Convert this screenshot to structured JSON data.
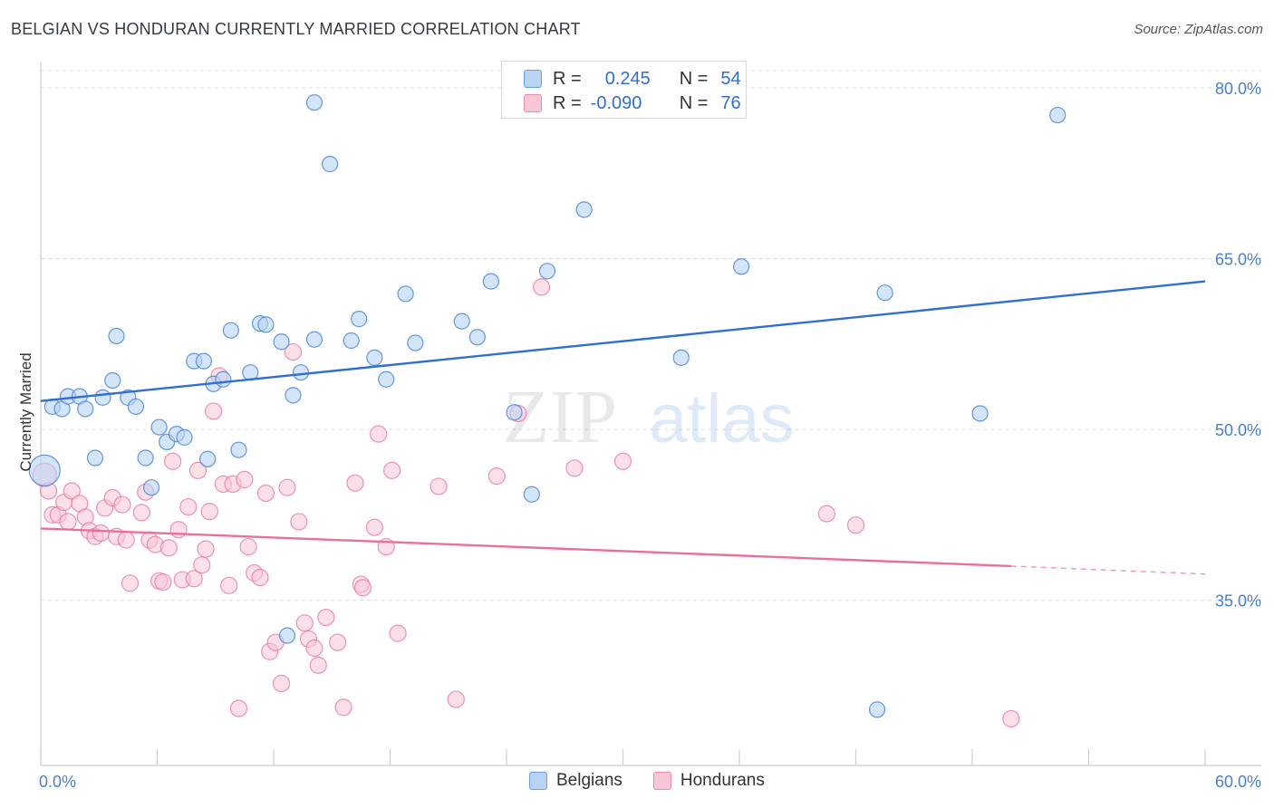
{
  "title": "BELGIAN VS HONDURAN CURRENTLY MARRIED CORRELATION CHART",
  "source": "Source: ZipAtlas.com",
  "watermark": {
    "zip": "ZIP",
    "atlas": "atlas"
  },
  "legend": {
    "rows": [
      {
        "r_label": "R =",
        "r_value": "0.245",
        "n_label": "N =",
        "n_value": "54"
      },
      {
        "r_label": "R =",
        "r_value": "-0.090",
        "n_label": "N =",
        "n_value": "76"
      }
    ]
  },
  "bottom_legend": {
    "blue": "Belgians",
    "pink": "Hondurans"
  },
  "colors": {
    "blue": "#4a86d8",
    "blue_fill": "#b9d3f3",
    "pink": "#e8709a",
    "pink_fill": "#f9c6d6",
    "grid": "#dcdcdc",
    "axis_text": "#4a7fd0"
  },
  "chart_data": {
    "type": "scatter",
    "title": "BELGIAN VS HONDURAN CURRENTLY MARRIED CORRELATION CHART",
    "xlabel": "",
    "ylabel": "Currently Married",
    "xlim": [
      0,
      60
    ],
    "ylim": [
      20.5,
      81.5
    ],
    "x_tick_labels": [
      "0.0%",
      "60.0%"
    ],
    "y_ticks": [
      35,
      50,
      65,
      80
    ],
    "y_tick_labels": [
      "35.0%",
      "50.0%",
      "65.0%",
      "80.0%"
    ],
    "series": [
      {
        "name": "Belgians",
        "r": 0.245,
        "n": 54,
        "trend": {
          "x0": 0,
          "y0": 52.5,
          "x1": 60,
          "y1": 63.0
        },
        "points": [
          [
            0.6,
            52
          ],
          [
            1.1,
            51.8
          ],
          [
            1.4,
            52.9
          ],
          [
            2.0,
            52.9
          ],
          [
            2.3,
            51.8
          ],
          [
            2.8,
            47.5
          ],
          [
            3.2,
            52.8
          ],
          [
            3.7,
            54.3
          ],
          [
            3.9,
            58.2
          ],
          [
            4.5,
            52.8
          ],
          [
            4.9,
            52
          ],
          [
            5.4,
            47.5
          ],
          [
            5.7,
            44.9
          ],
          [
            6.1,
            50.2
          ],
          [
            6.5,
            48.9
          ],
          [
            7.0,
            49.6
          ],
          [
            7.4,
            49.3
          ],
          [
            7.9,
            56.0
          ],
          [
            8.4,
            56.0
          ],
          [
            8.6,
            47.4
          ],
          [
            8.9,
            54.0
          ],
          [
            9.4,
            54.4
          ],
          [
            9.8,
            58.7
          ],
          [
            10.2,
            48.2
          ],
          [
            10.8,
            55.0
          ],
          [
            11.3,
            59.3
          ],
          [
            11.6,
            59.2
          ],
          [
            12.4,
            57.7
          ],
          [
            12.7,
            31.9
          ],
          [
            13.0,
            53.0
          ],
          [
            13.4,
            55.0
          ],
          [
            14.1,
            57.9
          ],
          [
            14.1,
            78.7
          ],
          [
            14.9,
            73.3
          ],
          [
            16.0,
            57.8
          ],
          [
            16.4,
            59.7
          ],
          [
            17.2,
            56.3
          ],
          [
            17.8,
            54.4
          ],
          [
            18.8,
            61.9
          ],
          [
            19.3,
            57.6
          ],
          [
            21.7,
            59.5
          ],
          [
            22.5,
            58.1
          ],
          [
            23.2,
            63.0
          ],
          [
            24.4,
            51.5
          ],
          [
            25.3,
            44.3
          ],
          [
            26.1,
            63.9
          ],
          [
            28.0,
            69.3
          ],
          [
            33.0,
            56.3
          ],
          [
            36.1,
            64.3
          ],
          [
            43.1,
            25.4
          ],
          [
            43.5,
            62.0
          ],
          [
            48.4,
            51.4
          ],
          [
            52.4,
            77.6
          ],
          [
            0.2,
            46.4
          ]
        ]
      },
      {
        "name": "Hondurans",
        "r": -0.09,
        "n": 76,
        "trend": {
          "x0": 0,
          "y0": 41.3,
          "x1": 50,
          "y1": 38.0,
          "dash_to_x": 60,
          "dash_to_y": 37.3
        },
        "points": [
          [
            0.2,
            46
          ],
          [
            0.4,
            44.6
          ],
          [
            0.6,
            42.5
          ],
          [
            0.9,
            42.5
          ],
          [
            1.2,
            43.6
          ],
          [
            1.4,
            41.9
          ],
          [
            1.6,
            44.6
          ],
          [
            2.0,
            43.5
          ],
          [
            2.3,
            42.3
          ],
          [
            2.5,
            41.1
          ],
          [
            2.8,
            40.6
          ],
          [
            3.1,
            40.9
          ],
          [
            3.3,
            43.1
          ],
          [
            3.7,
            44.0
          ],
          [
            3.9,
            40.6
          ],
          [
            4.2,
            43.4
          ],
          [
            4.4,
            40.3
          ],
          [
            4.6,
            36.5
          ],
          [
            5.2,
            42.7
          ],
          [
            5.4,
            44.5
          ],
          [
            5.6,
            40.3
          ],
          [
            5.9,
            39.9
          ],
          [
            6.1,
            36.7
          ],
          [
            6.3,
            36.6
          ],
          [
            6.6,
            39.6
          ],
          [
            6.8,
            47.2
          ],
          [
            7.1,
            41.2
          ],
          [
            7.3,
            36.8
          ],
          [
            7.6,
            43.2
          ],
          [
            7.9,
            36.9
          ],
          [
            8.1,
            46.4
          ],
          [
            8.3,
            38.1
          ],
          [
            8.5,
            39.5
          ],
          [
            8.7,
            42.8
          ],
          [
            8.9,
            51.6
          ],
          [
            9.2,
            54.7
          ],
          [
            9.4,
            45.2
          ],
          [
            9.7,
            36.3
          ],
          [
            9.9,
            45.2
          ],
          [
            10.2,
            25.5
          ],
          [
            10.5,
            45.6
          ],
          [
            10.7,
            39.7
          ],
          [
            11.0,
            37.4
          ],
          [
            11.3,
            37.0
          ],
          [
            11.6,
            44.4
          ],
          [
            11.8,
            30.5
          ],
          [
            12.1,
            31.3
          ],
          [
            12.4,
            27.7
          ],
          [
            12.7,
            44.9
          ],
          [
            13.0,
            56.8
          ],
          [
            13.3,
            41.9
          ],
          [
            13.6,
            33.0
          ],
          [
            13.8,
            31.6
          ],
          [
            14.1,
            30.8
          ],
          [
            14.3,
            29.3
          ],
          [
            14.7,
            33.5
          ],
          [
            15.3,
            31.3
          ],
          [
            15.6,
            25.6
          ],
          [
            16.2,
            45.3
          ],
          [
            16.5,
            36.4
          ],
          [
            16.6,
            36.1
          ],
          [
            17.2,
            41.4
          ],
          [
            17.4,
            49.6
          ],
          [
            17.8,
            39.7
          ],
          [
            18.1,
            46.4
          ],
          [
            18.4,
            32.1
          ],
          [
            20.5,
            45.0
          ],
          [
            21.4,
            26.3
          ],
          [
            23.5,
            45.9
          ],
          [
            24.6,
            51.4
          ],
          [
            25.8,
            62.5
          ],
          [
            27.5,
            46.6
          ],
          [
            30.0,
            47.2
          ],
          [
            40.5,
            42.6
          ],
          [
            42.0,
            41.6
          ],
          [
            50.0,
            24.6
          ]
        ]
      }
    ]
  }
}
